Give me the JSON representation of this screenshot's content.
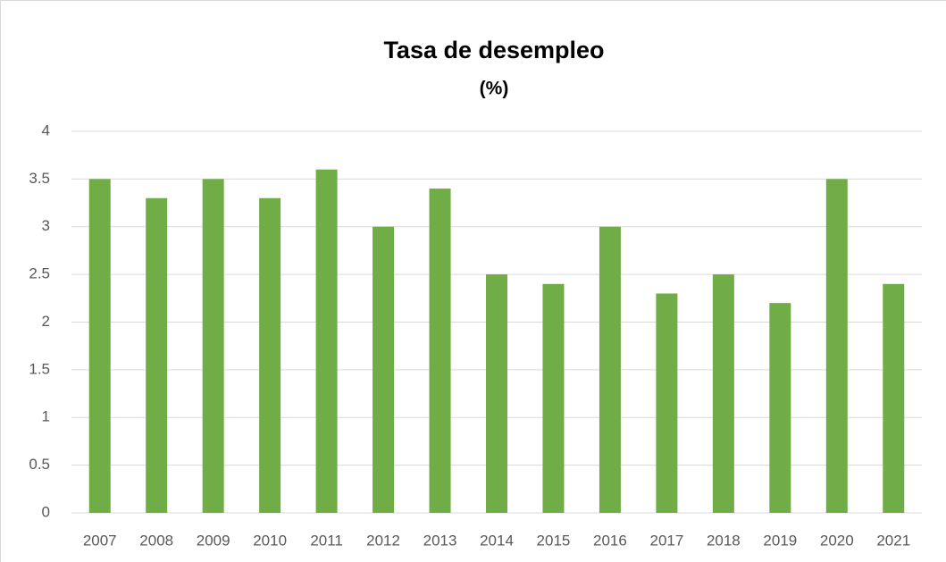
{
  "chart_data": {
    "type": "bar",
    "title": "Tasa de desempleo",
    "subtitle": "(%)",
    "categories": [
      "2007",
      "2008",
      "2009",
      "2010",
      "2011",
      "2012",
      "2013",
      "2014",
      "2015",
      "2016",
      "2017",
      "2018",
      "2019",
      "2020",
      "2021"
    ],
    "values": [
      3.5,
      3.3,
      3.5,
      3.3,
      3.6,
      3.0,
      3.4,
      2.5,
      2.4,
      3.0,
      2.3,
      2.5,
      2.2,
      3.5,
      2.4
    ],
    "color": "#70ad47",
    "ylim": [
      0,
      4
    ],
    "yticks": [
      0,
      0.5,
      1,
      1.5,
      2,
      2.5,
      3,
      3.5,
      4
    ],
    "grid": true
  }
}
